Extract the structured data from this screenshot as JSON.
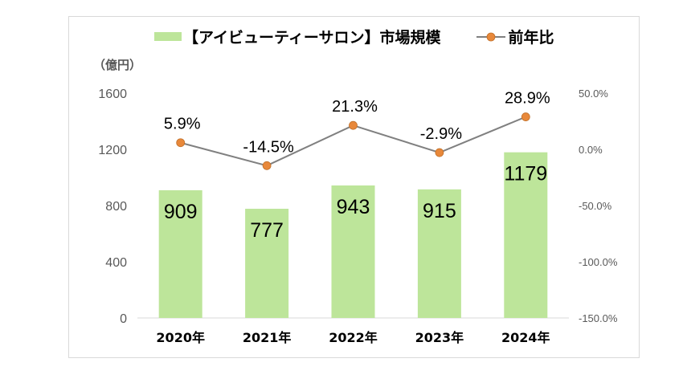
{
  "chart_data": {
    "type": "bar+line",
    "categories": [
      "2020年",
      "2021年",
      "2022年",
      "2023年",
      "2024年"
    ],
    "unit_label": "（億円）",
    "series": [
      {
        "name": "【アイビューティーサロン】市場規模",
        "type": "bar",
        "axis": "left",
        "values": [
          909,
          777,
          943,
          915,
          1179
        ],
        "data_labels": [
          "909",
          "777",
          "943",
          "915",
          "1179"
        ],
        "color": "#bde59a"
      },
      {
        "name": "前年比",
        "type": "line",
        "axis": "right",
        "values": [
          5.9,
          -14.5,
          21.3,
          -2.9,
          28.9
        ],
        "data_labels": [
          "5.9%",
          "-14.5%",
          "21.3%",
          "-2.9%",
          "28.9%"
        ],
        "color": "#808080",
        "marker_color": "#e8883a"
      }
    ],
    "left_axis": {
      "range": [
        0,
        1600
      ],
      "ticks": [
        "0",
        "400",
        "800",
        "1200",
        "1600"
      ]
    },
    "right_axis": {
      "range": [
        -150,
        50
      ],
      "ticks": [
        "-150.0%",
        "-100.0%",
        "-50.0%",
        "0.0%",
        "50.0%"
      ]
    },
    "grid": false,
    "legend_position": "top"
  }
}
